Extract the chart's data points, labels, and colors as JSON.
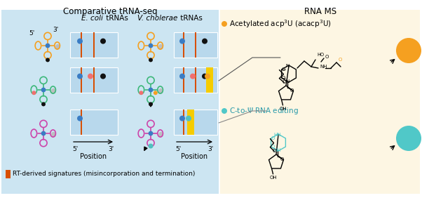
{
  "title_left": "Comparative tRNA-seq",
  "title_right": "RNA MS",
  "bg_left": "#cee3f0",
  "bg_right": "#fdf6e3",
  "orange_trna": "#f5a020",
  "green_trna": "#3db87a",
  "magenta_trna": "#cc44aa",
  "blue_dot": "#3a7cc4",
  "pink_dot": "#f07070",
  "black_dot": "#111111",
  "orange_dot": "#f5a020",
  "teal_dot": "#50c0c0",
  "gray_fill": "#b0b0b0",
  "rt_orange": "#d84f00",
  "yellow_bar": "#f5cc00",
  "acpa_color": "#f5a020",
  "trcp_color": "#50c8c8",
  "label_acetylated": "Acetylated acp³U (acacp³U)",
  "label_editing": "C-to-Ψ RNA editing",
  "legend_text": "RT-derived signatures (misincorporation and termination)"
}
